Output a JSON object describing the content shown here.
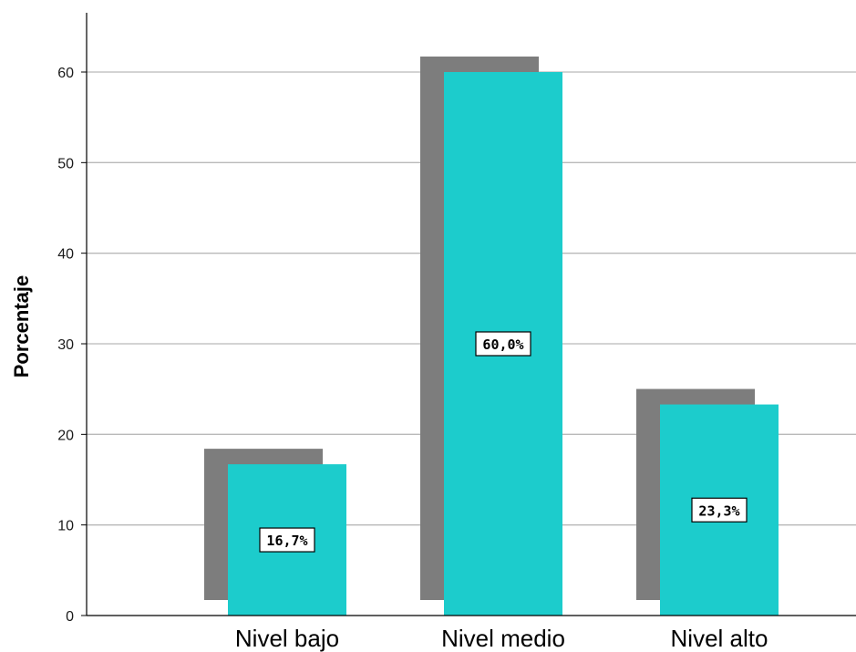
{
  "chart_data": {
    "type": "bar",
    "categories": [
      "Nivel bajo",
      "Nivel medio",
      "Nivel alto"
    ],
    "values": [
      16.7,
      60.0,
      23.3
    ],
    "data_labels": [
      "16,7%",
      "60,0%",
      "23,3%"
    ],
    "ylabel": "Porcentaje",
    "ylim": [
      0,
      66
    ],
    "yticks": [
      0,
      10,
      20,
      30,
      40,
      50,
      60
    ],
    "grid": true,
    "bar_style": "3d-shadow",
    "colors": {
      "bar": "#1ccccc",
      "shadow": "#7d7d7d",
      "grid": "#b9b9b9",
      "axis": "#000000"
    }
  }
}
